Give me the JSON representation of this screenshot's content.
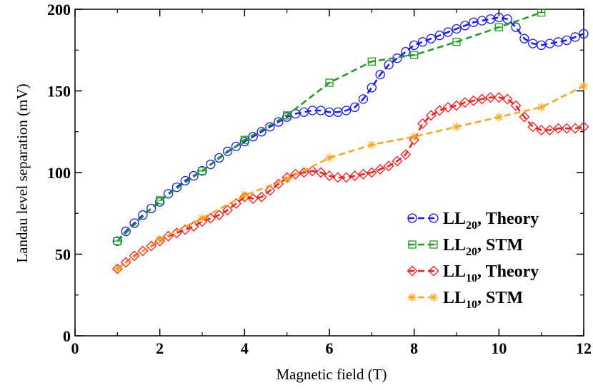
{
  "chart_data": {
    "type": "line",
    "title": "",
    "xlabel": "Magnetic field (T)",
    "ylabel": "Landau level separation (mV)",
    "xlim": [
      0,
      12
    ],
    "ylim": [
      0,
      200
    ],
    "xticks": [
      "0",
      "2",
      "4",
      "6",
      "8",
      "10",
      "12"
    ],
    "yticks": [
      "0",
      "50",
      "100",
      "150",
      "200"
    ],
    "grid": false,
    "legend_position": "bottom-right",
    "series": [
      {
        "name": "LL20, Theory",
        "label_main": "LL",
        "label_sub": "20",
        "label_rest": ", Theory",
        "color": "#1a1aff",
        "marker": "circle",
        "x": [
          1.0,
          1.2,
          1.4,
          1.6,
          1.8,
          2.0,
          2.2,
          2.4,
          2.6,
          2.8,
          3.0,
          3.2,
          3.4,
          3.6,
          3.8,
          4.0,
          4.2,
          4.4,
          4.6,
          4.8,
          5.0,
          5.2,
          5.4,
          5.6,
          5.8,
          6.0,
          6.2,
          6.4,
          6.6,
          6.8,
          7.0,
          7.2,
          7.4,
          7.6,
          7.8,
          8.0,
          8.2,
          8.4,
          8.6,
          8.8,
          9.0,
          9.2,
          9.4,
          9.6,
          9.8,
          10.0,
          10.2,
          10.4,
          10.6,
          10.8,
          11.0,
          11.2,
          11.4,
          11.6,
          11.8,
          12.0
        ],
        "y": [
          58,
          64,
          69,
          74,
          78,
          82,
          87,
          91,
          95,
          98,
          101,
          105,
          109,
          113,
          116,
          119,
          122,
          125,
          128,
          131,
          134,
          136,
          137,
          138,
          138,
          137,
          137,
          138,
          140,
          145,
          152,
          160,
          166,
          170,
          174,
          178,
          180,
          182,
          184,
          186,
          188,
          190,
          192,
          193,
          194,
          195,
          194,
          189,
          182,
          179,
          178,
          179,
          180,
          181,
          183,
          185
        ]
      },
      {
        "name": "LL20, STM",
        "label_main": "LL",
        "label_sub": "20",
        "label_rest": ", STM",
        "color": "#1e9e1e",
        "marker": "square",
        "x": [
          1,
          2,
          3,
          4,
          5,
          6,
          7,
          8,
          9,
          10,
          11
        ],
        "y": [
          58,
          83,
          101,
          120,
          135,
          155,
          168,
          172,
          180,
          189,
          198
        ]
      },
      {
        "name": "LL10, Theory",
        "label_main": "LL",
        "label_sub": "10",
        "label_rest": ", Theory",
        "color": "#ff1a1a",
        "marker": "diamond",
        "x": [
          1.0,
          1.2,
          1.4,
          1.6,
          1.8,
          2.0,
          2.2,
          2.4,
          2.6,
          2.8,
          3.0,
          3.2,
          3.4,
          3.6,
          3.8,
          4.0,
          4.2,
          4.4,
          4.6,
          4.8,
          5.0,
          5.2,
          5.4,
          5.6,
          5.8,
          6.0,
          6.2,
          6.4,
          6.6,
          6.8,
          7.0,
          7.2,
          7.4,
          7.6,
          7.8,
          8.0,
          8.2,
          8.4,
          8.6,
          8.8,
          9.0,
          9.2,
          9.4,
          9.6,
          9.8,
          10.0,
          10.2,
          10.4,
          10.6,
          10.8,
          11.0,
          11.2,
          11.4,
          11.6,
          11.8,
          12.0
        ],
        "y": [
          41,
          45,
          49,
          52,
          55,
          58,
          61,
          63,
          65,
          67,
          70,
          72,
          74,
          77,
          81,
          85,
          84,
          85,
          89,
          93,
          97,
          99,
          100,
          101,
          100,
          98,
          97,
          97,
          98,
          99,
          100,
          102,
          104,
          107,
          111,
          120,
          130,
          135,
          138,
          140,
          141,
          143,
          144,
          145,
          146,
          146,
          145,
          141,
          134,
          128,
          126,
          126,
          127,
          127,
          127,
          128
        ]
      },
      {
        "name": "LL10, STM",
        "label_main": "LL",
        "label_sub": "10",
        "label_rest": ", STM",
        "color": "#ffa51a",
        "marker": "star",
        "x": [
          1,
          2,
          3,
          4,
          5,
          6,
          7,
          8,
          9,
          10,
          11,
          12
        ],
        "y": [
          41,
          59,
          72,
          86,
          96,
          109,
          117,
          122,
          128,
          134,
          140,
          153
        ]
      }
    ]
  }
}
